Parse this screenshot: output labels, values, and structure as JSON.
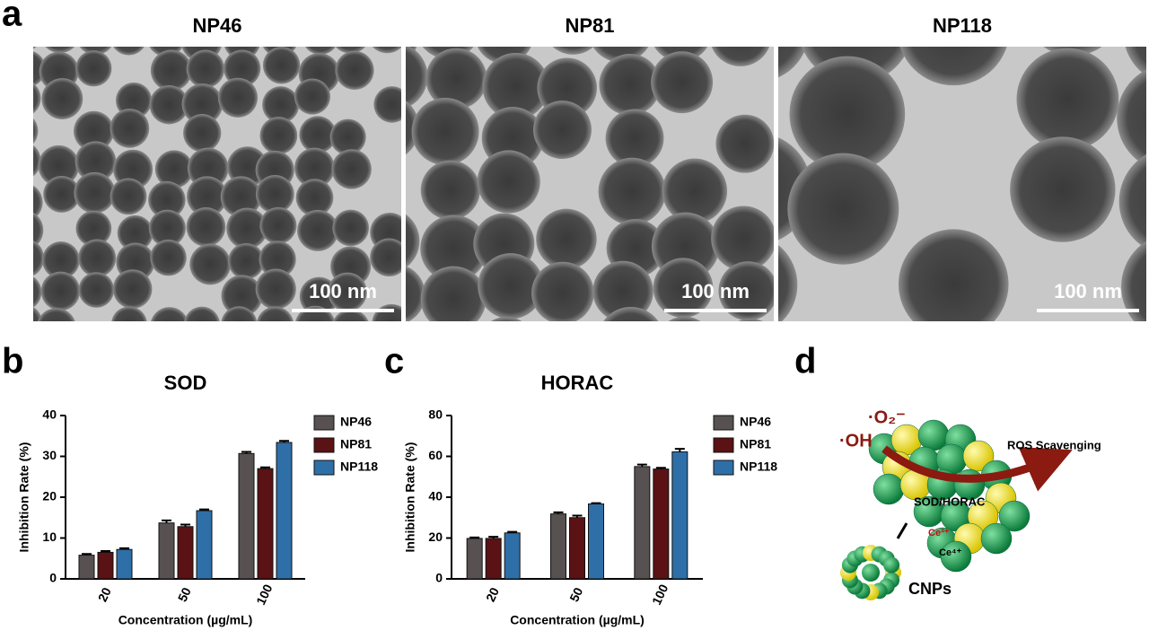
{
  "panels": {
    "a": {
      "label": "a",
      "images": [
        {
          "title": "NP46",
          "scale": "100 nm"
        },
        {
          "title": "NP81",
          "scale": "100 nm"
        },
        {
          "title": "NP118",
          "scale": "100 nm"
        }
      ]
    },
    "b": {
      "label": "b"
    },
    "c": {
      "label": "c"
    },
    "d": {
      "label": "d",
      "oh": "·OH",
      "o2": "·O₂⁻",
      "ros": "ROS Scavenging",
      "enzyme": "SOD/HORAC",
      "ce3": "Ce³⁺",
      "ce4": "Ce⁴⁺",
      "cnps": "CNPs"
    }
  },
  "chart_data": [
    {
      "type": "bar",
      "title": "SOD",
      "x_label": "Concentration (µg/mL)",
      "y_label": "Inhibition Rate (%)",
      "categories": [
        "20",
        "50",
        "100"
      ],
      "ylim": [
        0,
        40
      ],
      "yticks": [
        0,
        10,
        20,
        30,
        40
      ],
      "series": [
        {
          "name": "NP46",
          "color": "#575151",
          "values": [
            5.8,
            13.7,
            30.7
          ],
          "errors": [
            0.3,
            0.6,
            0.4
          ]
        },
        {
          "name": "NP81",
          "color": "#5a1214",
          "values": [
            6.5,
            12.8,
            27.0
          ],
          "errors": [
            0.3,
            0.5,
            0.3
          ]
        },
        {
          "name": "NP118",
          "color": "#2f6fa8",
          "values": [
            7.2,
            16.7,
            33.4
          ],
          "errors": [
            0.3,
            0.3,
            0.4
          ]
        }
      ]
    },
    {
      "type": "bar",
      "title": "HORAC",
      "x_label": "Concentration (µg/mL)",
      "y_label": "Inhibition Rate (%)",
      "categories": [
        "20",
        "50",
        "100"
      ],
      "ylim": [
        0,
        80
      ],
      "yticks": [
        0,
        20,
        40,
        60,
        80
      ],
      "series": [
        {
          "name": "NP46",
          "color": "#575151",
          "values": [
            19.8,
            31.8,
            55.0
          ],
          "errors": [
            0.5,
            0.8,
            1.0
          ]
        },
        {
          "name": "NP81",
          "color": "#5a1214",
          "values": [
            19.8,
            30.0,
            53.8
          ],
          "errors": [
            0.8,
            1.0,
            0.6
          ]
        },
        {
          "name": "NP118",
          "color": "#2f6fa8",
          "values": [
            22.5,
            36.7,
            62.2
          ],
          "errors": [
            0.5,
            0.4,
            1.5
          ]
        }
      ]
    }
  ]
}
